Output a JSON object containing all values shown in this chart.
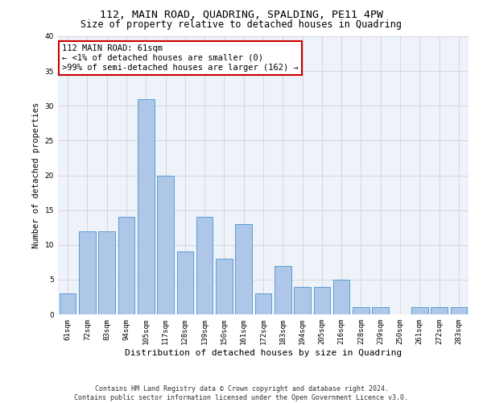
{
  "title": "112, MAIN ROAD, QUADRING, SPALDING, PE11 4PW",
  "subtitle": "Size of property relative to detached houses in Quadring",
  "xlabel": "Distribution of detached houses by size in Quadring",
  "ylabel": "Number of detached properties",
  "categories": [
    "61sqm",
    "72sqm",
    "83sqm",
    "94sqm",
    "105sqm",
    "117sqm",
    "128sqm",
    "139sqm",
    "150sqm",
    "161sqm",
    "172sqm",
    "183sqm",
    "194sqm",
    "205sqm",
    "216sqm",
    "228sqm",
    "239sqm",
    "250sqm",
    "261sqm",
    "272sqm",
    "283sqm"
  ],
  "values": [
    3,
    12,
    12,
    14,
    31,
    20,
    9,
    14,
    8,
    13,
    3,
    7,
    4,
    4,
    5,
    1,
    1,
    0,
    1,
    1,
    1
  ],
  "bar_color": "#aec6e8",
  "bar_edge_color": "#5a9fd4",
  "annotation_line1": "112 MAIN ROAD: 61sqm",
  "annotation_line2": "← <1% of detached houses are smaller (0)",
  "annotation_line3": ">99% of semi-detached houses are larger (162) →",
  "annotation_box_color": "#ffffff",
  "annotation_box_edge_color": "#cc0000",
  "ylim": [
    0,
    40
  ],
  "yticks": [
    0,
    5,
    10,
    15,
    20,
    25,
    30,
    35,
    40
  ],
  "grid_color": "#cccccc",
  "background_color": "#eef2f9",
  "footer_text": "Contains HM Land Registry data © Crown copyright and database right 2024.\nContains public sector information licensed under the Open Government Licence v3.0.",
  "title_fontsize": 9.5,
  "subtitle_fontsize": 8.5,
  "xlabel_fontsize": 8,
  "ylabel_fontsize": 7.5,
  "tick_fontsize": 6.5,
  "annotation_fontsize": 7.5,
  "footer_fontsize": 6
}
